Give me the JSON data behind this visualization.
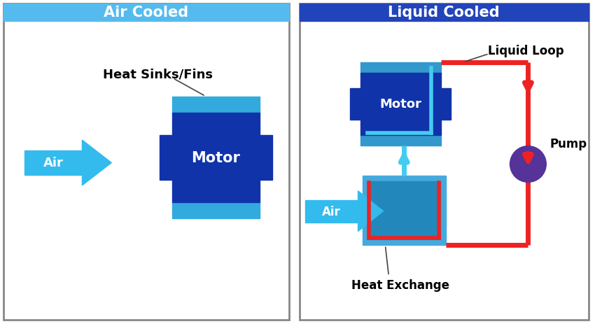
{
  "fig_width": 8.5,
  "fig_height": 4.64,
  "dpi": 100,
  "bg_color": "#ffffff",
  "left_panel": {
    "title": "Air Cooled",
    "title_bg": "#55BBEE",
    "title_color": "#ffffff",
    "annotation": "Heat Sinks/Fins",
    "motor_color": "#1133AA",
    "fin_color": "#33AADD",
    "air_arrow_color": "#33BBEE"
  },
  "right_panel": {
    "title": "Liquid Cooled",
    "title_bg": "#2244BB",
    "title_color": "#ffffff",
    "motor_color": "#1133AA",
    "fin_color": "#3399CC",
    "heat_exchanger_color": "#44AADD",
    "heat_exchanger_inner": "#2288BB",
    "air_arrow_color": "#33BBEE",
    "hot_loop_color": "#EE2222",
    "cool_loop_color": "#44CCEE",
    "pump_color": "#553399",
    "annotation_liquid_loop": "Liquid Loop",
    "annotation_heat_exchange": "Heat Exchange",
    "annotation_pump": "Pump"
  }
}
